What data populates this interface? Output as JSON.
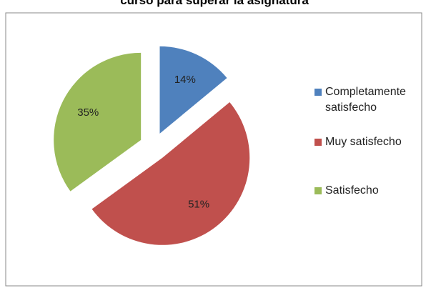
{
  "chart_data": {
    "type": "pie",
    "title": "curso para superar la asignatura",
    "categories": [
      "Completamente satisfecho",
      "Muy satisfecho",
      "Satisfecho"
    ],
    "values": [
      14,
      51,
      35
    ],
    "value_labels": [
      "14%",
      "51%",
      "35%"
    ],
    "colors": [
      "#4f81bd",
      "#c0504d",
      "#9bbb59"
    ],
    "legend": "right"
  }
}
